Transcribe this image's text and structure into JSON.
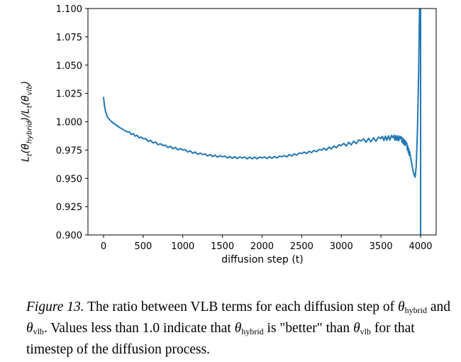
{
  "chart_data": {
    "type": "line",
    "title": "",
    "xlabel": "diffusion step (t)",
    "ylabel": {
      "L": "L",
      "t": "t",
      "theta": "θ",
      "hybrid": "hybrid",
      "vlb": "vlb"
    },
    "xlim": [
      -197,
      4197
    ],
    "ylim": [
      0.9,
      1.1
    ],
    "xticks": [
      0,
      500,
      1000,
      1500,
      2000,
      2500,
      3000,
      3500,
      4000
    ],
    "yticks": [
      "0.900",
      "0.925",
      "0.950",
      "0.975",
      "1.000",
      "1.025",
      "1.050",
      "1.075",
      "1.100"
    ],
    "grid": false,
    "series": [
      {
        "name": "ratio",
        "color": "#1f77b4",
        "x": [
          0,
          10,
          25,
          50,
          100,
          200,
          300,
          500,
          750,
          1000,
          1250,
          1500,
          1750,
          2000,
          2250,
          2500,
          2750,
          3000,
          3250,
          3500,
          3650,
          3750,
          3820,
          3870,
          3910,
          3930,
          3945,
          3960,
          3975,
          3985,
          3992,
          4000,
          4001
        ],
        "y": [
          1.022,
          1.015,
          1.009,
          1.004,
          1.0,
          0.995,
          0.991,
          0.985,
          0.979,
          0.975,
          0.971,
          0.969,
          0.968,
          0.968,
          0.969,
          0.972,
          0.975,
          0.979,
          0.983,
          0.985,
          0.986,
          0.985,
          0.98,
          0.97,
          0.955,
          0.951,
          0.96,
          0.99,
          1.04,
          1.09,
          1.12,
          1.12,
          0.85
        ]
      }
    ]
  },
  "caption": {
    "figure_label": "Figure 13.",
    "text1": " The ratio between VLB terms for each diffusion step of ",
    "theta": "θ",
    "hybrid": "hybrid",
    "and": " and ",
    "vlb": "vlb",
    "text2": ". Values less than 1.0 indicate that ",
    "text3": " is \"better\" than ",
    "text4": " for that timestep of the diffusion process."
  }
}
